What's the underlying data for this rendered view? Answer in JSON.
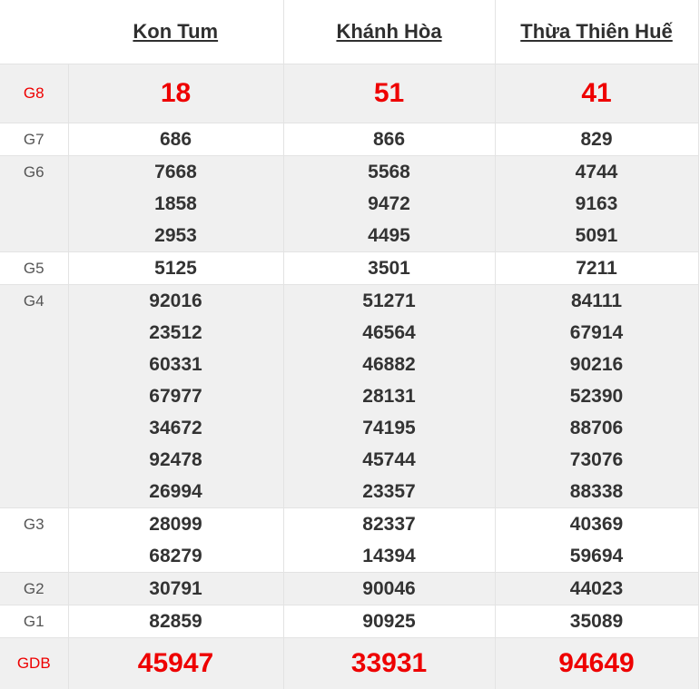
{
  "table": {
    "headers": [
      "Kon Tum",
      "Khánh Hòa",
      "Thừa Thiên Huế"
    ],
    "rows": [
      {
        "label": "G8",
        "highlight": true,
        "values": [
          [
            "18"
          ],
          [
            "51"
          ],
          [
            "41"
          ]
        ]
      },
      {
        "label": "G7",
        "highlight": false,
        "values": [
          [
            "686"
          ],
          [
            "866"
          ],
          [
            "829"
          ]
        ]
      },
      {
        "label": "G6",
        "highlight": false,
        "values": [
          [
            "7668",
            "1858",
            "2953"
          ],
          [
            "5568",
            "9472",
            "4495"
          ],
          [
            "4744",
            "9163",
            "5091"
          ]
        ]
      },
      {
        "label": "G5",
        "highlight": false,
        "values": [
          [
            "5125"
          ],
          [
            "3501"
          ],
          [
            "7211"
          ]
        ]
      },
      {
        "label": "G4",
        "highlight": false,
        "values": [
          [
            "92016",
            "23512",
            "60331",
            "67977",
            "34672",
            "92478",
            "26994"
          ],
          [
            "51271",
            "46564",
            "46882",
            "28131",
            "74195",
            "45744",
            "23357"
          ],
          [
            "84111",
            "67914",
            "90216",
            "52390",
            "88706",
            "73076",
            "88338"
          ]
        ]
      },
      {
        "label": "G3",
        "highlight": false,
        "values": [
          [
            "28099",
            "68279"
          ],
          [
            "82337",
            "14394"
          ],
          [
            "40369",
            "59694"
          ]
        ]
      },
      {
        "label": "G2",
        "highlight": false,
        "values": [
          [
            "30791"
          ],
          [
            "90046"
          ],
          [
            "44023"
          ]
        ]
      },
      {
        "label": "G1",
        "highlight": false,
        "values": [
          [
            "82859"
          ],
          [
            "90925"
          ],
          [
            "35089"
          ]
        ]
      },
      {
        "label": "GDB",
        "highlight": true,
        "values": [
          [
            "45947"
          ],
          [
            "33931"
          ],
          [
            "94649"
          ]
        ]
      }
    ],
    "colors": {
      "highlight_text": "#ee0000",
      "alt_row_background": "#f0f0f0",
      "number_text": "#333333",
      "label_text": "#555555",
      "border": "#e3e3e3"
    }
  }
}
